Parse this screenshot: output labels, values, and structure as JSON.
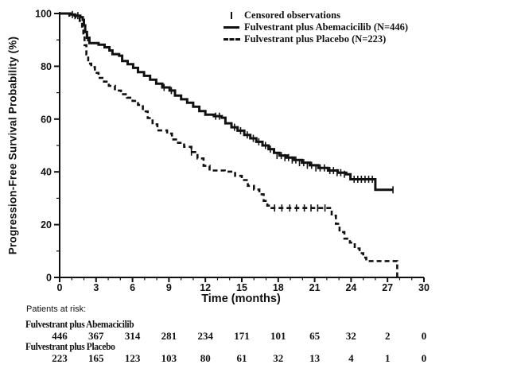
{
  "figure": {
    "y_axis_label": "Progression-Free Survival Probability (%)",
    "x_axis_label": "Time (months)",
    "patients_at_risk_header": "Patients at risk:"
  },
  "legend": {
    "censored_label": "Censored observations",
    "series1_label": "Fulvestrant plus Abemacicilib  (N=446)",
    "series2_label": "Fulvestrant plus Placebo  (N=223)"
  },
  "chart_data": {
    "type": "line",
    "subtype": "kaplan-meier-step",
    "title": "",
    "xlabel": "Time (months)",
    "ylabel": "Progression-Free Survival Probability (%)",
    "xlim": [
      0,
      30
    ],
    "ylim": [
      0,
      100
    ],
    "x_major_ticks": [
      0,
      3,
      6,
      9,
      12,
      15,
      18,
      21,
      24,
      27,
      30
    ],
    "x_minor_step": 1,
    "y_major_ticks": [
      0,
      20,
      40,
      60,
      80,
      100
    ],
    "y_minor_step": 10,
    "grid": false,
    "legend_position": "top-center",
    "series": [
      {
        "name": "Fulvestrant plus Abemacicilib (N=446)",
        "style": "solid",
        "steps": [
          [
            0,
            100
          ],
          [
            0.9,
            99.6
          ],
          [
            1.3,
            99.2
          ],
          [
            1.7,
            98.6
          ],
          [
            1.9,
            97.6
          ],
          [
            2.0,
            95.5
          ],
          [
            2.1,
            93
          ],
          [
            2.25,
            90.8
          ],
          [
            2.45,
            88.8
          ],
          [
            3.2,
            88.2
          ],
          [
            3.7,
            87.2
          ],
          [
            4.1,
            86
          ],
          [
            4.35,
            84.6
          ],
          [
            4.9,
            84
          ],
          [
            5.15,
            82
          ],
          [
            5.6,
            80.8
          ],
          [
            6.05,
            79.4
          ],
          [
            6.45,
            77.8
          ],
          [
            6.95,
            76.4
          ],
          [
            7.45,
            74.9
          ],
          [
            7.95,
            73.4
          ],
          [
            8.45,
            72
          ],
          [
            9.05,
            70.8
          ],
          [
            9.5,
            68.9
          ],
          [
            10.0,
            67.5
          ],
          [
            10.5,
            66.2
          ],
          [
            11.0,
            64.7
          ],
          [
            11.5,
            63
          ],
          [
            12.0,
            61.7
          ],
          [
            12.7,
            61.1
          ],
          [
            13.35,
            60.5
          ],
          [
            13.65,
            58.4
          ],
          [
            14.15,
            56.9
          ],
          [
            14.65,
            55.6
          ],
          [
            15.2,
            54
          ],
          [
            15.7,
            52.7
          ],
          [
            16.2,
            51.4
          ],
          [
            16.7,
            50
          ],
          [
            17.2,
            48.6
          ],
          [
            17.65,
            47.2
          ],
          [
            18.1,
            46.2
          ],
          [
            18.7,
            45.4
          ],
          [
            19.3,
            44.5
          ],
          [
            19.95,
            43.5
          ],
          [
            20.6,
            42.5
          ],
          [
            21.3,
            41.5
          ],
          [
            22.1,
            40.5
          ],
          [
            22.9,
            39.7
          ],
          [
            23.6,
            39.1
          ],
          [
            23.95,
            37.2
          ],
          [
            26.0,
            33.2
          ],
          [
            27.45,
            33.2
          ]
        ],
        "censored": [
          [
            1.05,
            99.6
          ],
          [
            1.5,
            99.2
          ],
          [
            2.3,
            90.8
          ],
          [
            8.6,
            72
          ],
          [
            9.2,
            70.8
          ],
          [
            12.85,
            61.1
          ],
          [
            13.15,
            61.1
          ],
          [
            14.4,
            56.9
          ],
          [
            14.9,
            55.6
          ],
          [
            15.45,
            54
          ],
          [
            15.95,
            52.7
          ],
          [
            16.4,
            51.4
          ],
          [
            16.95,
            50
          ],
          [
            17.35,
            48.6
          ],
          [
            17.9,
            46.2
          ],
          [
            18.25,
            46.2
          ],
          [
            18.55,
            45.4
          ],
          [
            18.85,
            45.4
          ],
          [
            19.15,
            44.5
          ],
          [
            19.45,
            44.5
          ],
          [
            19.75,
            43.5
          ],
          [
            20.1,
            43.5
          ],
          [
            20.4,
            42.5
          ],
          [
            20.75,
            42.5
          ],
          [
            21.1,
            41.5
          ],
          [
            21.45,
            41.5
          ],
          [
            21.8,
            41.5
          ],
          [
            22.25,
            40.5
          ],
          [
            22.55,
            40.5
          ],
          [
            22.85,
            39.7
          ],
          [
            23.15,
            39.7
          ],
          [
            23.45,
            39.1
          ],
          [
            24.25,
            37.2
          ],
          [
            24.55,
            37.2
          ],
          [
            24.85,
            37.2
          ],
          [
            25.15,
            37.2
          ],
          [
            25.45,
            37.2
          ],
          [
            25.75,
            37.2
          ],
          [
            27.45,
            33.2
          ]
        ]
      },
      {
        "name": "Fulvestrant plus Placebo (N=223)",
        "style": "dashed",
        "steps": [
          [
            0,
            100
          ],
          [
            0.8,
            99.2
          ],
          [
            1.3,
            98.2
          ],
          [
            1.65,
            97.2
          ],
          [
            1.85,
            94.5
          ],
          [
            1.95,
            91.5
          ],
          [
            2.05,
            88
          ],
          [
            2.2,
            84.5
          ],
          [
            2.35,
            81
          ],
          [
            2.6,
            79.7
          ],
          [
            2.9,
            77.5
          ],
          [
            3.2,
            75.6
          ],
          [
            3.65,
            74.2
          ],
          [
            4.05,
            72.6
          ],
          [
            4.55,
            70.8
          ],
          [
            5.05,
            69.4
          ],
          [
            5.55,
            68.1
          ],
          [
            6.0,
            66.9
          ],
          [
            6.45,
            65.4
          ],
          [
            6.85,
            62.9
          ],
          [
            7.25,
            60.4
          ],
          [
            7.65,
            58
          ],
          [
            8.05,
            55.7
          ],
          [
            8.85,
            54.5
          ],
          [
            9.25,
            52.3
          ],
          [
            9.75,
            51
          ],
          [
            10.25,
            49.5
          ],
          [
            10.85,
            47.5
          ],
          [
            11.35,
            45.1
          ],
          [
            11.85,
            42.3
          ],
          [
            12.35,
            40.5
          ],
          [
            13.6,
            40.1
          ],
          [
            14.45,
            38.5
          ],
          [
            15.0,
            36.9
          ],
          [
            15.5,
            34.7
          ],
          [
            16.0,
            33.3
          ],
          [
            16.45,
            31.5
          ],
          [
            16.8,
            29
          ],
          [
            17.1,
            27.2
          ],
          [
            17.45,
            26.3
          ],
          [
            22.4,
            23.4
          ],
          [
            22.75,
            20.3
          ],
          [
            23.05,
            17.2
          ],
          [
            23.45,
            14.7
          ],
          [
            23.9,
            13.2
          ],
          [
            24.3,
            11
          ],
          [
            24.7,
            9.2
          ],
          [
            25.0,
            7.5
          ],
          [
            25.25,
            6.2
          ],
          [
            27.8,
            6.2
          ],
          [
            27.8,
            0
          ]
        ],
        "censored": [
          [
            10.85,
            47.5
          ],
          [
            17.7,
            26.3
          ],
          [
            18.3,
            26.3
          ],
          [
            18.95,
            26.3
          ],
          [
            19.5,
            26.3
          ],
          [
            20.15,
            26.3
          ],
          [
            20.7,
            26.3
          ],
          [
            21.25,
            26.3
          ],
          [
            21.85,
            26.3
          ]
        ]
      }
    ],
    "at_risk": {
      "header": "Patients at risk:",
      "times": [
        0,
        3,
        6,
        9,
        12,
        15,
        18,
        21,
        24,
        27,
        30
      ],
      "rows": [
        {
          "label": "Fulvestrant plus Abemacicilib",
          "counts": [
            446,
            367,
            314,
            281,
            234,
            171,
            101,
            65,
            32,
            2,
            0
          ]
        },
        {
          "label": "Fulvestrant plus Placebo",
          "counts": [
            223,
            165,
            123,
            103,
            80,
            61,
            32,
            13,
            4,
            1,
            0
          ]
        }
      ]
    },
    "line_color": "#111111"
  }
}
